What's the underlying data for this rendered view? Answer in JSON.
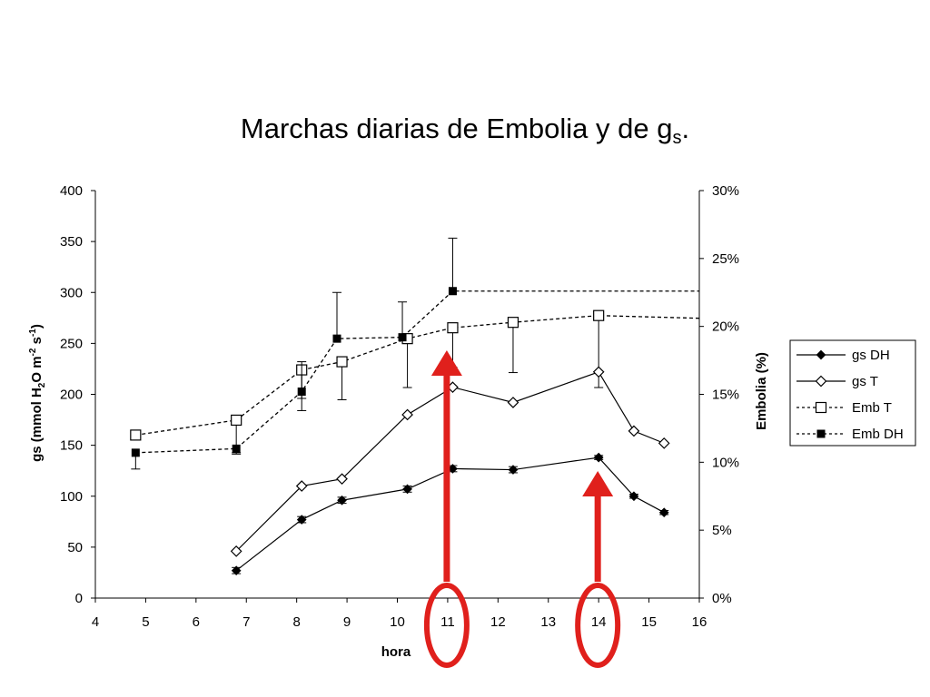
{
  "chart_data": {
    "type": "line",
    "title": "Marchas diarias de Embolia y de g",
    "title_subscript": "s",
    "title_suffix": ".",
    "xlabel": "hora",
    "ylabel_left": {
      "pre": "gs (mmol H",
      "sub": "2",
      "mid": "O m",
      "sup1": "-2",
      "mid2": " s",
      "sup2": "-1",
      "post": ")"
    },
    "ylabel_right": "Embolia (%)",
    "xlim": [
      4,
      16
    ],
    "ylim_left": [
      0,
      400
    ],
    "ylim_right": [
      0,
      30
    ],
    "x_ticks": [
      "4",
      "5",
      "6",
      "7",
      "8",
      "9",
      "10",
      "11",
      "12",
      "13",
      "14",
      "15",
      "16"
    ],
    "y_ticks_left": [
      "0",
      "50",
      "100",
      "150",
      "200",
      "250",
      "300",
      "350",
      "400"
    ],
    "y_ticks_right": [
      "0%",
      "5%",
      "10%",
      "15%",
      "20%",
      "25%",
      "30%"
    ],
    "legend_position": "right",
    "series": [
      {
        "name": "gs DH",
        "axis": "left",
        "line": "solid",
        "marker": "diamond-filled",
        "points": [
          [
            6.8,
            27
          ],
          [
            8.1,
            77
          ],
          [
            8.9,
            96
          ],
          [
            10.2,
            107
          ],
          [
            11.1,
            127
          ],
          [
            12.3,
            126
          ],
          [
            14.0,
            138
          ],
          [
            14.7,
            100
          ],
          [
            15.3,
            84
          ]
        ],
        "err": [
          3,
          3,
          3,
          3,
          3,
          3,
          2,
          2,
          2
        ]
      },
      {
        "name": "gs T",
        "axis": "left",
        "line": "solid",
        "marker": "diamond-open",
        "points": [
          [
            6.8,
            46
          ],
          [
            8.1,
            110
          ],
          [
            8.9,
            117
          ],
          [
            10.2,
            180
          ],
          [
            11.1,
            207
          ],
          [
            12.3,
            192
          ],
          [
            14.0,
            222
          ],
          [
            14.7,
            164
          ],
          [
            15.3,
            152
          ]
        ],
        "err": null
      },
      {
        "name": "Emb T",
        "axis": "right",
        "line": "dashed",
        "marker": "square-open",
        "points": [
          [
            4.8,
            12.0
          ],
          [
            6.8,
            13.1
          ],
          [
            8.1,
            16.8
          ],
          [
            8.9,
            17.4
          ],
          [
            10.2,
            19.1
          ],
          [
            11.1,
            19.9
          ],
          [
            12.3,
            20.3
          ],
          [
            14.0,
            20.8
          ],
          [
            16.0,
            20.6
          ]
        ],
        "err": [
          null,
          [
            -2.4,
            0
          ],
          [
            -2.1,
            0
          ],
          [
            -2.8,
            0
          ],
          [
            -3.6,
            0
          ],
          [
            -2.9,
            0
          ],
          [
            -3.7,
            0
          ],
          [
            -5.3,
            0
          ],
          null
        ]
      },
      {
        "name": "Emb DH",
        "axis": "right",
        "line": "dashed",
        "marker": "square-filled",
        "points": [
          [
            4.8,
            10.7
          ],
          [
            6.8,
            11.0
          ],
          [
            8.1,
            15.2
          ],
          [
            8.8,
            19.1
          ],
          [
            10.1,
            19.2
          ],
          [
            11.1,
            22.6
          ],
          [
            16.0,
            22.6
          ]
        ],
        "err": [
          [
            -1.2,
            0
          ],
          [
            -0.4,
            0
          ],
          [
            -1.4,
            2.2
          ],
          [
            0,
            3.4
          ],
          [
            0,
            2.6
          ],
          [
            0,
            3.9
          ],
          null
        ]
      }
    ],
    "annotations": [
      {
        "type": "arrow-with-ellipse",
        "color": "#e0201c",
        "x": 11
      },
      {
        "type": "arrow-with-ellipse",
        "color": "#e0201c",
        "x": 14
      }
    ]
  }
}
